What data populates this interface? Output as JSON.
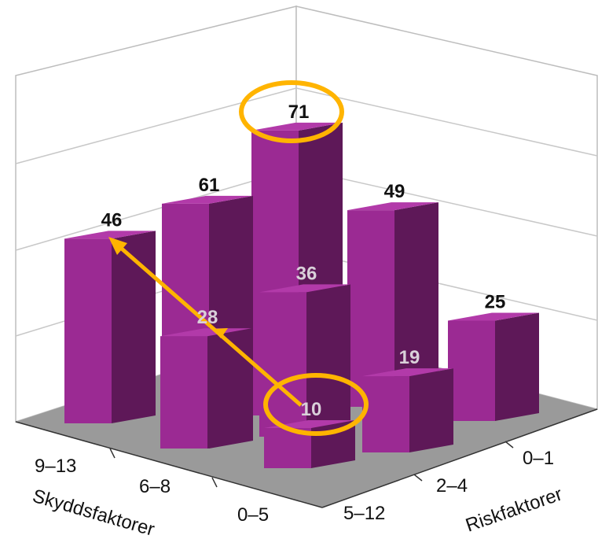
{
  "chart_data": {
    "type": "bar",
    "subtype": "3d-bar-grid",
    "x_axis_label": "Skyddsfaktorer",
    "y_axis_label": "Riskfaktorer",
    "x_categories": [
      "9–13",
      "6–8",
      "0–5"
    ],
    "y_categories": [
      "0–1",
      "2–4",
      "5–12"
    ],
    "series": [
      {
        "name": "0–1",
        "values": [
          null,
          null,
          25
        ]
      },
      {
        "name": "2–4",
        "values": [
          61,
          71,
          49
        ]
      },
      {
        "name": "5–12",
        "values": [
          46,
          28,
          36
        ]
      }
    ],
    "front_values": [
      10,
      19
    ],
    "cells": [
      {
        "value": 71,
        "highlighted": true
      },
      {
        "value": 61,
        "highlighted": false
      },
      {
        "value": 49,
        "highlighted": false
      },
      {
        "value": 46,
        "highlighted": false
      },
      {
        "value": 36,
        "highlighted": false
      },
      {
        "value": 28,
        "highlighted": false
      },
      {
        "value": 25,
        "highlighted": false
      },
      {
        "value": 19,
        "highlighted": false
      },
      {
        "value": 10,
        "highlighted": true
      }
    ],
    "annotation": "arrow from 10 through 28 to 46",
    "grid": true,
    "legend": "none",
    "colors": {
      "bar_front": "#9b2a93",
      "bar_side": "#5e1858",
      "bar_top": "#b23aa9",
      "highlight": "#ffb400",
      "floor": "#999999",
      "dark_label": "#111111",
      "light_label": "#d9d0d9"
    }
  }
}
